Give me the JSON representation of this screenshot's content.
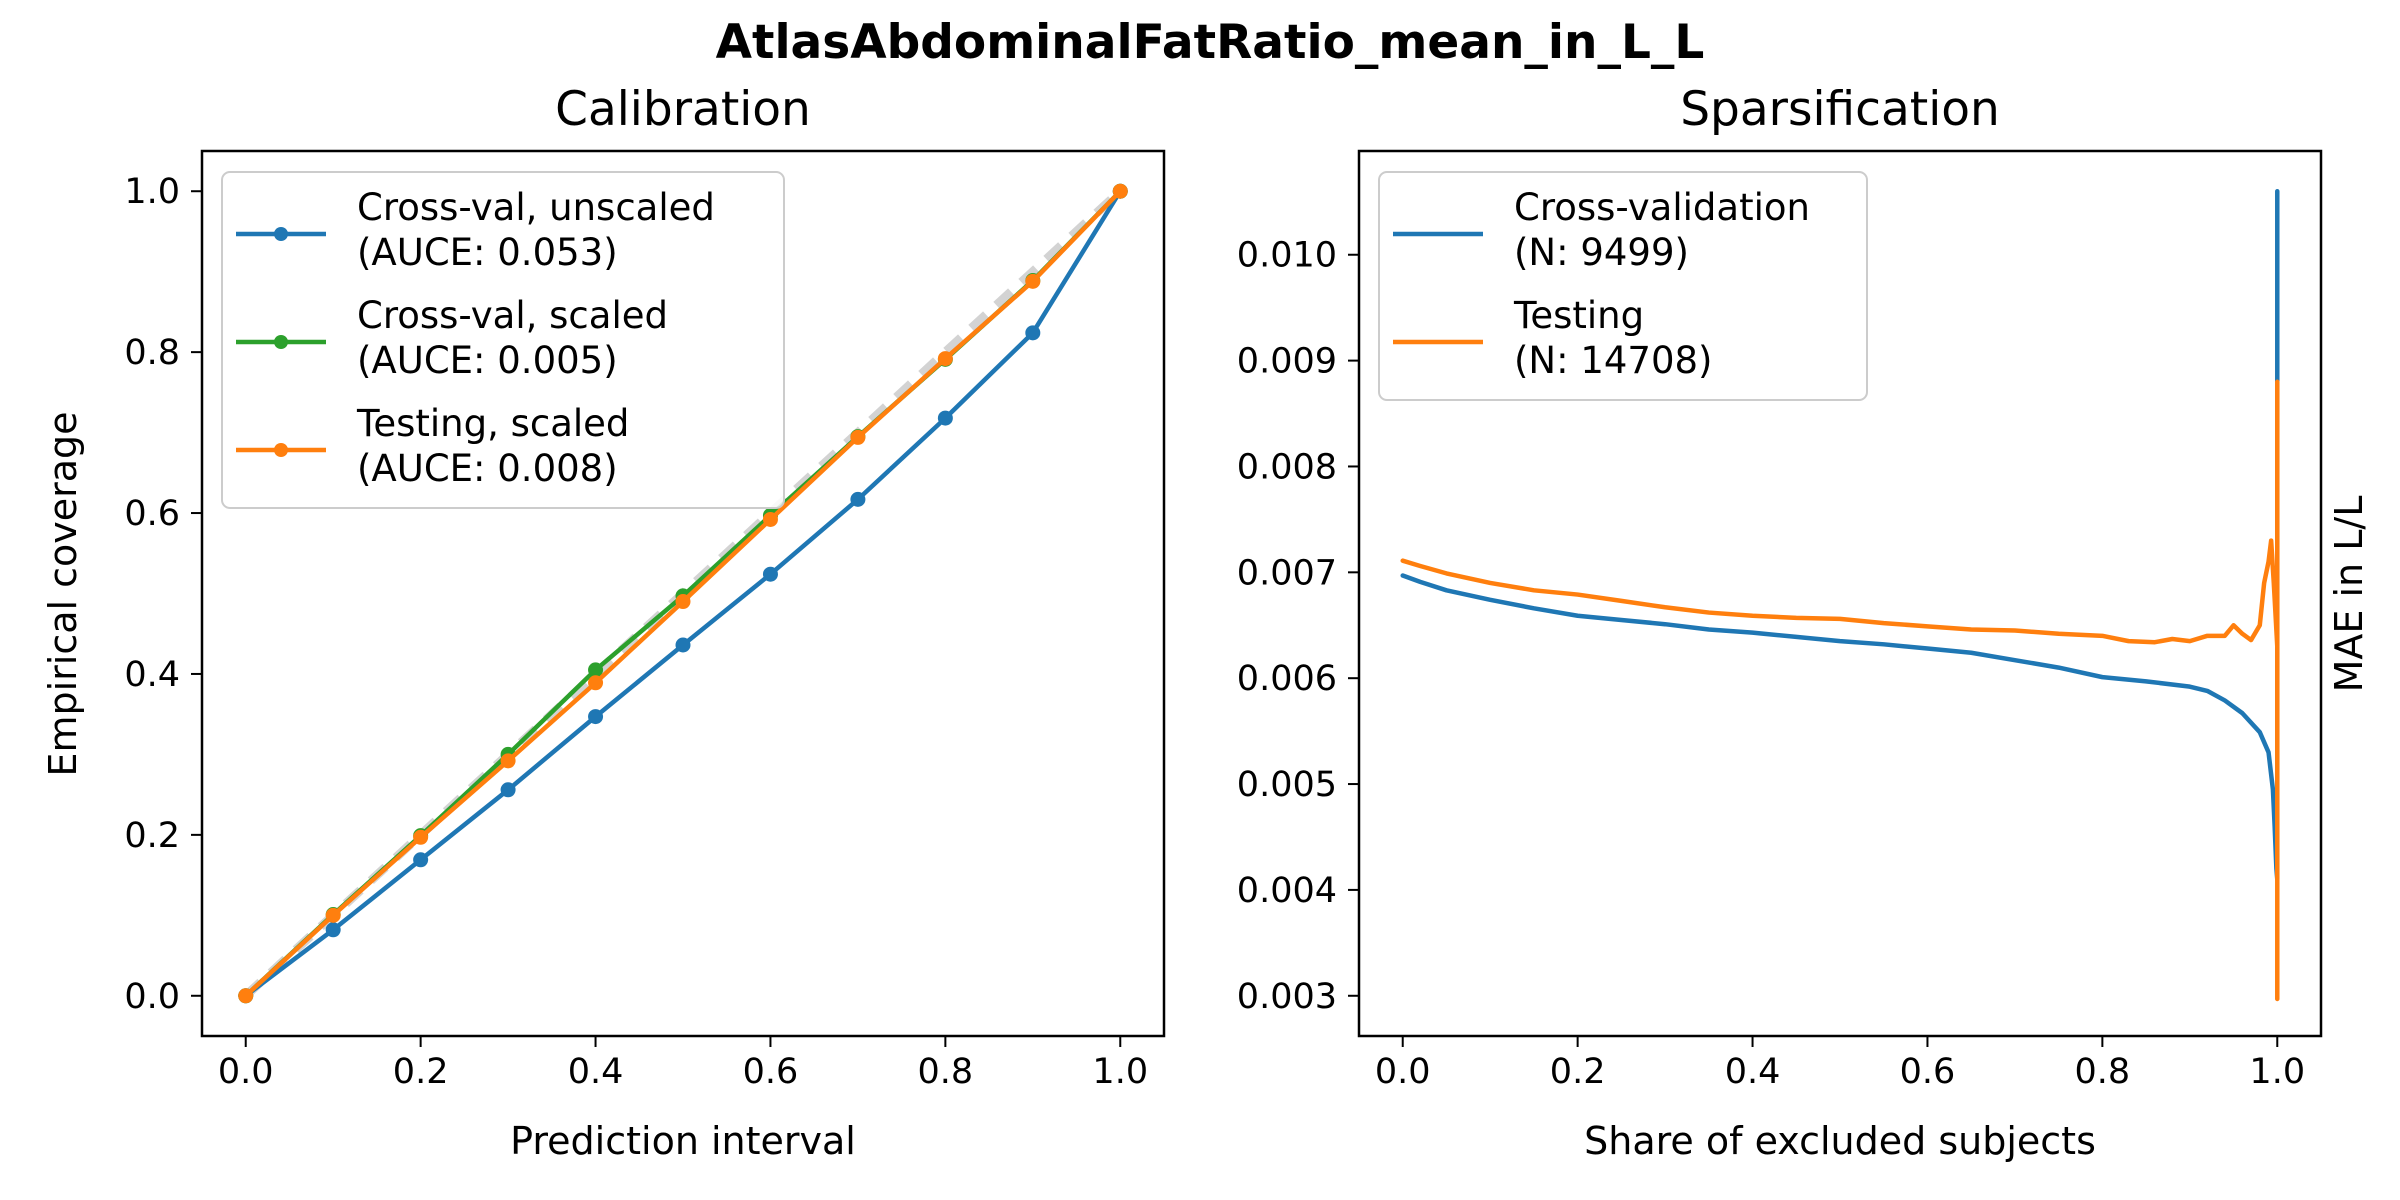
{
  "figure": {
    "suptitle": "AtlasAbdominalFatRatio_mean_in_L_L"
  },
  "chart_data": [
    {
      "type": "line",
      "title": "Calibration",
      "xlabel": "Prediction interval",
      "ylabel": "Empirical coverage",
      "xlim": [
        -0.05,
        1.05
      ],
      "ylim": [
        -0.05,
        1.05
      ],
      "xticks": [
        "0.0",
        "0.2",
        "0.4",
        "0.6",
        "0.8",
        "1.0"
      ],
      "yticks": [
        "0.0",
        "0.2",
        "0.4",
        "0.6",
        "0.8",
        "1.0"
      ],
      "grid": false,
      "legend_position": "upper-left",
      "reference_line": {
        "x": [
          0,
          1
        ],
        "y": [
          0,
          1
        ],
        "style": "dashed",
        "color": "#d3d3d3"
      },
      "x": [
        0.0,
        0.1,
        0.2,
        0.3,
        0.4,
        0.5,
        0.6,
        0.7,
        0.8,
        0.9,
        1.0
      ],
      "series": [
        {
          "name": "Cross-val, unscaled",
          "annotation": "(AUCE: 0.053)",
          "color": "#1f77b4",
          "values": [
            0.0,
            0.082,
            0.169,
            0.256,
            0.347,
            0.436,
            0.524,
            0.617,
            0.718,
            0.824,
            1.0
          ]
        },
        {
          "name": "Cross-val, scaled",
          "annotation": "(AUCE: 0.005)",
          "color": "#2ca02c",
          "values": [
            0.0,
            0.101,
            0.199,
            0.3,
            0.405,
            0.497,
            0.597,
            0.695,
            0.791,
            0.889,
            1.0
          ]
        },
        {
          "name": "Testing, scaled",
          "annotation": "(AUCE: 0.008)",
          "color": "#ff7f0e",
          "values": [
            0.0,
            0.1,
            0.197,
            0.292,
            0.389,
            0.49,
            0.592,
            0.694,
            0.792,
            0.888,
            1.0
          ]
        }
      ]
    },
    {
      "type": "line",
      "title": "Sparsification",
      "xlabel": "Share of excluded subjects",
      "ylabel": "MAE in L/L",
      "ylabel_side": "right",
      "xlim": [
        -0.05,
        1.05
      ],
      "ylim": [
        0.00262,
        0.01098
      ],
      "xticks": [
        "0.0",
        "0.2",
        "0.4",
        "0.6",
        "0.8",
        "1.0"
      ],
      "yticks": [
        "0.003",
        "0.004",
        "0.005",
        "0.006",
        "0.007",
        "0.008",
        "0.009",
        "0.010"
      ],
      "grid": false,
      "legend_position": "upper-left",
      "series": [
        {
          "name": "Cross-validation",
          "annotation": "(N: 9499)",
          "color": "#1f77b4",
          "x": [
            0.0,
            0.02,
            0.05,
            0.1,
            0.15,
            0.2,
            0.25,
            0.3,
            0.35,
            0.4,
            0.45,
            0.5,
            0.55,
            0.6,
            0.65,
            0.7,
            0.75,
            0.8,
            0.85,
            0.9,
            0.92,
            0.94,
            0.96,
            0.98,
            0.99,
            0.995,
            0.997,
            0.999,
            1.0,
            1.0,
            1.0
          ],
          "values": [
            0.00697,
            0.00691,
            0.00683,
            0.00674,
            0.00666,
            0.00659,
            0.00655,
            0.00651,
            0.00646,
            0.00643,
            0.00639,
            0.00635,
            0.00632,
            0.00628,
            0.00624,
            0.00617,
            0.0061,
            0.00601,
            0.00597,
            0.00592,
            0.00588,
            0.00579,
            0.00567,
            0.00549,
            0.0053,
            0.00495,
            0.0046,
            0.0042,
            0.0041,
            0.0106,
            0.0062
          ]
        },
        {
          "name": "Testing",
          "annotation": "(N: 14708)",
          "color": "#ff7f0e",
          "x": [
            0.0,
            0.02,
            0.05,
            0.1,
            0.15,
            0.2,
            0.25,
            0.3,
            0.35,
            0.4,
            0.45,
            0.5,
            0.55,
            0.6,
            0.65,
            0.7,
            0.75,
            0.8,
            0.83,
            0.86,
            0.88,
            0.9,
            0.92,
            0.94,
            0.95,
            0.96,
            0.97,
            0.98,
            0.985,
            0.99,
            0.993,
            0.996,
            0.998,
            1.0,
            1.0,
            1.0
          ],
          "values": [
            0.00711,
            0.00706,
            0.00699,
            0.0069,
            0.00683,
            0.00679,
            0.00673,
            0.00667,
            0.00662,
            0.00659,
            0.00657,
            0.00656,
            0.00652,
            0.00649,
            0.00646,
            0.00645,
            0.00642,
            0.0064,
            0.00635,
            0.00634,
            0.00637,
            0.00635,
            0.0064,
            0.0064,
            0.0065,
            0.00642,
            0.00636,
            0.0065,
            0.0069,
            0.0071,
            0.0073,
            0.0069,
            0.0066,
            0.0063,
            0.0088,
            0.00297
          ]
        }
      ]
    }
  ]
}
